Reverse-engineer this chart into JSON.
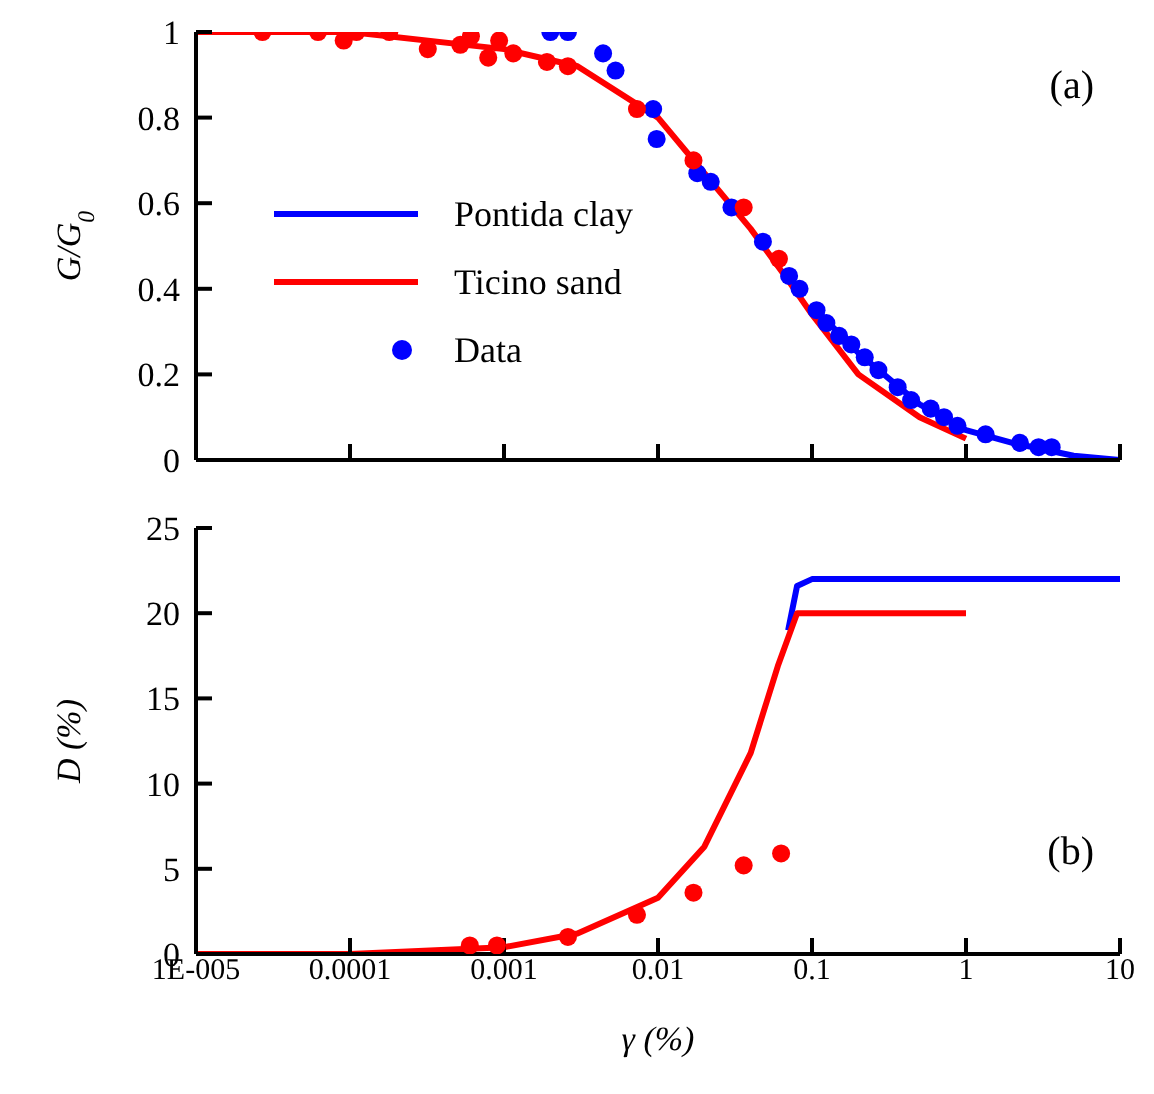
{
  "chart_data": [
    {
      "type": "line",
      "ylabel": "G/G$_{0}$",
      "log": "x",
      "legend": "left",
      "tick_labels": "y",
      "marker": "none",
      "annotations": [
        "(a)"
      ],
      "xlim": [
        1e-05,
        10
      ],
      "xticks": [
        1e-05,
        0.0001,
        0.001,
        0.01,
        0.1,
        1,
        10
      ],
      "ylim": [
        0,
        1
      ],
      "yticks": [
        0,
        0.2,
        0.4,
        0.6,
        0.8,
        1
      ],
      "series": [
        {
          "name": "Pontida clay",
          "color": "#0000ff",
          "x": [
            0.1,
            0.2,
            0.5,
            1,
            2,
            5,
            10
          ],
          "values": [
            0.36,
            0.25,
            0.13,
            0.07,
            0.04,
            0.01,
            0
          ]
        },
        {
          "name": "Ticino sand",
          "color": "#ff0000",
          "x": [
            1e-05,
            0.0001,
            0.001,
            0.003,
            0.01,
            0.02,
            0.04,
            0.07,
            0.1,
            0.2,
            0.5,
            1
          ],
          "values": [
            1,
            1,
            0.96,
            0.92,
            0.8,
            0.67,
            0.54,
            0.42,
            0.34,
            0.2,
            0.1,
            0.05
          ]
        },
        {
          "name": "Data",
          "type": "scatter",
          "marker": "circle",
          "color": "#0000ff",
          "x": [
            0.002,
            0.0026,
            0.0044,
            0.0053,
            0.0093,
            0.0098,
            0.018,
            0.022,
            0.03,
            0.048,
            0.071,
            0.083,
            0.107,
            0.124,
            0.15,
            0.18,
            0.22,
            0.27,
            0.36,
            0.44,
            0.59,
            0.72,
            0.88,
            1.34,
            2.24,
            2.96,
            3.6
          ],
          "values": [
            1,
            1,
            0.95,
            0.91,
            0.82,
            0.75,
            0.67,
            0.65,
            0.59,
            0.51,
            0.43,
            0.4,
            0.35,
            0.32,
            0.29,
            0.27,
            0.24,
            0.21,
            0.17,
            0.14,
            0.12,
            0.1,
            0.08,
            0.06,
            0.04,
            0.03,
            0.03
          ]
        },
        {
          "type": "scatter",
          "marker": "circle",
          "color": "#ff0000",
          "x": [
            2.7e-05,
            6.2e-05,
            9.1e-05,
            0.00011,
            0.00018,
            0.00032,
            0.00052,
            0.00061,
            0.00079,
            0.00093,
            0.00115,
            0.0019,
            0.0026,
            0.0073,
            0.017,
            0.036,
            0.061
          ],
          "values": [
            1,
            1,
            0.98,
            1,
            1,
            0.96,
            0.97,
            0.99,
            0.94,
            0.98,
            0.95,
            0.93,
            0.92,
            0.82,
            0.7,
            0.59,
            0.47
          ]
        }
      ]
    },
    {
      "type": "line",
      "ylabel": "D (%)",
      "xlabel": "γ (%)",
      "log": "x",
      "marker": "none",
      "annotations": [
        "(b)"
      ],
      "xlim": [
        1e-05,
        10
      ],
      "xticks": [
        {
          "value": 1e-05,
          "label": "1E-005"
        },
        0.0001,
        0.001,
        0.01,
        0.1,
        1,
        10
      ],
      "ylim": [
        0,
        25
      ],
      "yticks": [
        0,
        5,
        10,
        15,
        20,
        25
      ],
      "series": [
        {
          "color": "#0000ff",
          "x": [
            0.07,
            0.08,
            0.1,
            10
          ],
          "values": [
            19,
            21.6,
            22,
            22
          ]
        },
        {
          "color": "#ff0000",
          "x": [
            1e-05,
            0.0001,
            0.001,
            0.003,
            0.01,
            0.02,
            0.04,
            0.06,
            0.08,
            1
          ],
          "values": [
            0,
            0,
            0.4,
            1.2,
            3.3,
            6.3,
            11.8,
            16.9,
            20,
            20
          ]
        },
        {
          "type": "scatter",
          "marker": "circle",
          "color": "#ff0000",
          "x": [
            0.0006,
            0.0009,
            0.0026,
            0.0073,
            0.017,
            0.036,
            0.063
          ],
          "values": [
            0.5,
            0.5,
            1,
            2.3,
            3.6,
            5.2,
            5.9
          ]
        }
      ]
    }
  ]
}
